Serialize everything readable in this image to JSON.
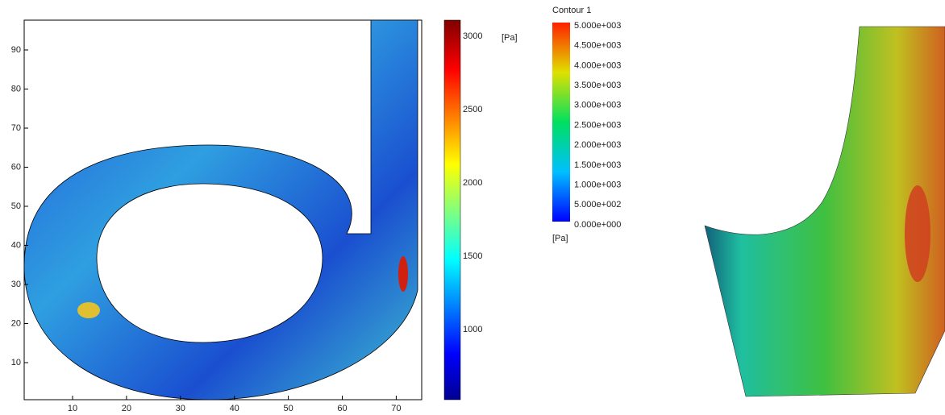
{
  "left_plot": {
    "xticks": [
      10,
      20,
      30,
      40,
      50,
      60,
      70
    ],
    "yticks": [
      90,
      80,
      70,
      60,
      50,
      40,
      30,
      20,
      10
    ],
    "colorbar": {
      "ticks": [
        3000,
        2500,
        2000,
        1500,
        1000
      ],
      "unit": "[Pa]"
    }
  },
  "right_legend": {
    "title": "Contour 1",
    "labels": [
      "5.000e+003",
      "4.500e+003",
      "4.000e+003",
      "3.500e+003",
      "3.000e+003",
      "2.500e+003",
      "2.000e+003",
      "1.500e+003",
      "1.000e+003",
      "5.000e+002",
      "0.000e+000"
    ],
    "unit": "[Pa]"
  }
}
